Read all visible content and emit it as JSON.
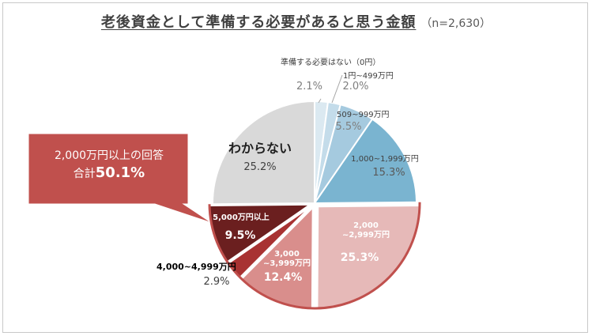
{
  "title": "老後資金として準備する必要があると思う金額",
  "subtitle": "（n=2,630）",
  "callout": {
    "line1": "2,000万円以上の回答",
    "prefix": "合計",
    "value": "50.1%"
  },
  "colors": {
    "callout_fill": "#c0504d",
    "pie_outline_emphasis": "#c0504d"
  },
  "chart_data": {
    "type": "pie",
    "title": "老後資金として準備する必要があると思う金額",
    "subtitle": "（n=2,630）",
    "start": "12 o'clock",
    "direction": "clockwise",
    "slices": [
      {
        "label": "準備する必要はない（0円）",
        "value": 2.1,
        "value_label": "2.1%",
        "color": "#dbe9f1"
      },
      {
        "label": "1円~499万円",
        "value": 2.0,
        "value_label": "2.0%",
        "color": "#c4dcea"
      },
      {
        "label": "509~999万円",
        "value": 5.5,
        "value_label": "5.5%",
        "color": "#a5cadf"
      },
      {
        "label": "1,000~1,999万円",
        "value": 15.3,
        "value_label": "15.3%",
        "color": "#7ab4d0"
      },
      {
        "label": "2,000\n~2,999万円",
        "value": 25.3,
        "value_label": "25.3%",
        "color": "#e6b9b8"
      },
      {
        "label": "3,000\n~3,999万円",
        "value": 12.4,
        "value_label": "12.4%",
        "color": "#d98e8c"
      },
      {
        "label": "4,000~4,999万円",
        "value": 2.9,
        "value_label": "2.9%",
        "color": "#a83232"
      },
      {
        "label": "5,000万円以上",
        "value": 9.5,
        "value_label": "9.5%",
        "color": "#6b1f1f"
      },
      {
        "label": "わからない",
        "value": 25.2,
        "value_label": "25.2%",
        "color": "#d9d9d9"
      }
    ]
  }
}
